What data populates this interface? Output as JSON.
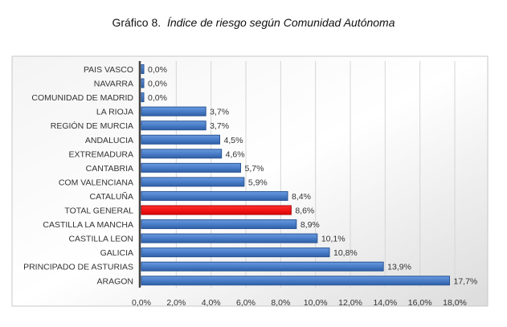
{
  "chart_data": {
    "type": "bar",
    "orientation": "horizontal",
    "title_prefix": "Gráfico 8.",
    "title": "Índice de riesgo según Comunidad Autónoma",
    "categories": [
      "PAIS VASCO",
      "NAVARRA",
      "COMUNIDAD DE MADRID",
      "LA RIOJA",
      "REGIÓN DE MURCIA",
      "ANDALUCIA",
      "EXTREMADURA",
      "CANTABRIA",
      "COM VALENCIANA",
      "CATALUÑA",
      "TOTAL GENERAL",
      "CASTILLA LA MANCHA",
      "CASTILLA LEON",
      "GALICIA",
      "PRINCIPADO DE ASTURIAS",
      "ARAGON"
    ],
    "values": [
      0.0,
      0.0,
      0.0,
      3.7,
      3.7,
      4.5,
      4.6,
      5.7,
      5.9,
      8.4,
      8.6,
      8.9,
      10.1,
      10.8,
      13.9,
      17.7
    ],
    "data_labels": [
      "0,0%",
      "0,0%",
      "0,0%",
      "3,7%",
      "3,7%",
      "4,5%",
      "4,6%",
      "5,7%",
      "5,9%",
      "8,4%",
      "8,6%",
      "8,9%",
      "10,1%",
      "10,8%",
      "13,9%",
      "17,7%"
    ],
    "xlim": [
      0,
      18
    ],
    "x_ticks": [
      "0,0%",
      "2,0%",
      "4,0%",
      "6,0%",
      "8,0%",
      "10,0%",
      "12,0%",
      "14,0%",
      "16,0%",
      "18,0%"
    ],
    "grid": "vertical",
    "colors": {
      "bar": "#4a7ec8",
      "highlight": "#ff0000",
      "highlight_category": "TOTAL GENERAL"
    }
  }
}
